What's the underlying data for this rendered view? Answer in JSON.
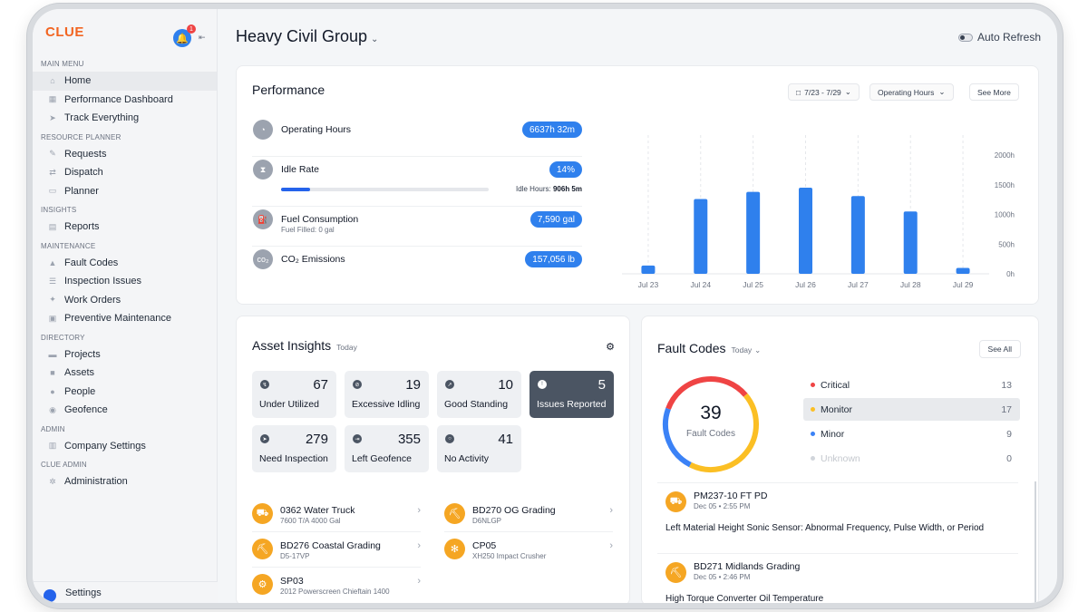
{
  "sidebar": {
    "logo": "CLUE",
    "notification_count": "1",
    "sections": [
      {
        "title": "MAIN MENU",
        "items": [
          {
            "label": "Home",
            "icon": "home-icon",
            "active": true
          },
          {
            "label": "Performance Dashboard",
            "icon": "dashboard-icon"
          },
          {
            "label": "Track Everything",
            "icon": "navigation-icon"
          }
        ]
      },
      {
        "title": "RESOURCE PLANNER",
        "items": [
          {
            "label": "Requests",
            "icon": "requests-icon"
          },
          {
            "label": "Dispatch",
            "icon": "dispatch-icon"
          },
          {
            "label": "Planner",
            "icon": "calendar-icon"
          }
        ]
      },
      {
        "title": "INSIGHTS",
        "items": [
          {
            "label": "Reports",
            "icon": "reports-icon"
          }
        ]
      },
      {
        "title": "MAINTENANCE",
        "items": [
          {
            "label": "Fault Codes",
            "icon": "warning-icon"
          },
          {
            "label": "Inspection Issues",
            "icon": "checklist-icon"
          },
          {
            "label": "Work Orders",
            "icon": "wrench-icon"
          },
          {
            "label": "Preventive Maintenance",
            "icon": "calendar-check-icon"
          }
        ]
      },
      {
        "title": "DIRECTORY",
        "items": [
          {
            "label": "Projects",
            "icon": "folder-icon"
          },
          {
            "label": "Assets",
            "icon": "truck-icon"
          },
          {
            "label": "People",
            "icon": "person-icon"
          },
          {
            "label": "Geofence",
            "icon": "pin-icon"
          }
        ]
      },
      {
        "title": "ADMIN",
        "items": [
          {
            "label": "Company Settings",
            "icon": "building-icon"
          }
        ]
      },
      {
        "title": "CLUE ADMIN",
        "items": [
          {
            "label": "Administration",
            "icon": "gear-icon"
          }
        ]
      }
    ],
    "bottom_label": "Settings"
  },
  "header": {
    "title": "Heavy Civil Group",
    "auto_refresh_label": "Auto Refresh",
    "auto_refresh_on": false
  },
  "performance": {
    "title": "Performance",
    "date_range": "7/23 - 7/29",
    "metric_select": "Operating Hours",
    "see_more": "See More",
    "metrics": [
      {
        "label": "Operating Hours",
        "sub": "",
        "value": "6637h 32m",
        "icon": "gauge-icon"
      },
      {
        "label": "Idle Rate",
        "sub": "",
        "value": "14%",
        "icon": "hourglass-icon",
        "idle_hours_label": "Idle Hours:",
        "idle_hours_value": "906h 5m",
        "progress": 0.14
      },
      {
        "label": "Fuel Consumption",
        "sub": "Fuel Filled: 0 gal",
        "value": "7,590 gal",
        "icon": "fuel-icon"
      },
      {
        "label": "CO₂ Emissions",
        "sub": "",
        "value": "157,056 lb",
        "icon": "co2-icon"
      }
    ]
  },
  "chart_data": {
    "type": "bar",
    "categories": [
      "Jul 23",
      "Jul 24",
      "Jul 25",
      "Jul 26",
      "Jul 27",
      "Jul 28",
      "Jul 29"
    ],
    "values": [
      140,
      1260,
      1380,
      1450,
      1310,
      1050,
      100
    ],
    "ylim": [
      0,
      2000
    ],
    "yticks": [
      "0h",
      "500h",
      "1000h",
      "1500h",
      "2000h"
    ],
    "ytick_values": [
      0,
      500,
      1000,
      1500,
      2000
    ],
    "bar_color": "#2f80ed",
    "grid": true
  },
  "asset_insights": {
    "title": "Asset Insights",
    "period": "Today",
    "tiles": [
      {
        "count": "67",
        "label": "Under Utilized",
        "icon": "bolt-icon"
      },
      {
        "count": "19",
        "label": "Excessive Idling",
        "icon": "block-icon"
      },
      {
        "count": "10",
        "label": "Good Standing",
        "icon": "trend-icon"
      },
      {
        "count": "5",
        "label": "Issues Reported",
        "icon": "alert-icon",
        "selected": true
      },
      {
        "count": "279",
        "label": "Need Inspection",
        "icon": "send-icon"
      },
      {
        "count": "355",
        "label": "Left Geofence",
        "icon": "exit-icon"
      },
      {
        "count": "41",
        "label": "No Activity",
        "icon": "no-activity-icon"
      }
    ],
    "assets": [
      {
        "name": "0362 Water Truck",
        "sub": "7600 T/A 4000 Gal",
        "icon": "water-truck-icon"
      },
      {
        "name": "BD270 OG Grading",
        "sub": "D6NLGP",
        "icon": "dozer-icon"
      },
      {
        "name": "BD276 Coastal Grading",
        "sub": "D5-17VP",
        "icon": "dozer-icon"
      },
      {
        "name": "CP05",
        "sub": "XH250 Impact Crusher",
        "icon": "crusher-icon"
      },
      {
        "name": "SP03",
        "sub": "2012 Powerscreen Chieftain 1400",
        "icon": "screener-icon"
      }
    ]
  },
  "fault_codes": {
    "title": "Fault Codes",
    "period": "Today",
    "see_all": "See All",
    "total": "39",
    "total_label": "Fault Codes",
    "legend": [
      {
        "label": "Critical",
        "count": "13",
        "value": 13,
        "color": "#ef4444"
      },
      {
        "label": "Monitor",
        "count": "17",
        "value": 17,
        "color": "#fbbf24",
        "selected": true
      },
      {
        "label": "Minor",
        "count": "9",
        "value": 9,
        "color": "#3b82f6"
      },
      {
        "label": "Unknown",
        "count": "0",
        "value": 0,
        "color": "#d1d5db"
      }
    ],
    "entries": [
      {
        "asset": "PM237-10 FT PD",
        "date": "Dec 05 • 2:55 PM",
        "description": "Left Material Height Sonic Sensor: Abnormal Frequency, Pulse Width, or Period",
        "icon": "paver-icon"
      },
      {
        "asset": "BD271 Midlands Grading",
        "date": "Dec 05 • 2:46 PM",
        "description": "High Torque Converter Oil Temperature",
        "icon": "dozer-icon"
      }
    ]
  }
}
